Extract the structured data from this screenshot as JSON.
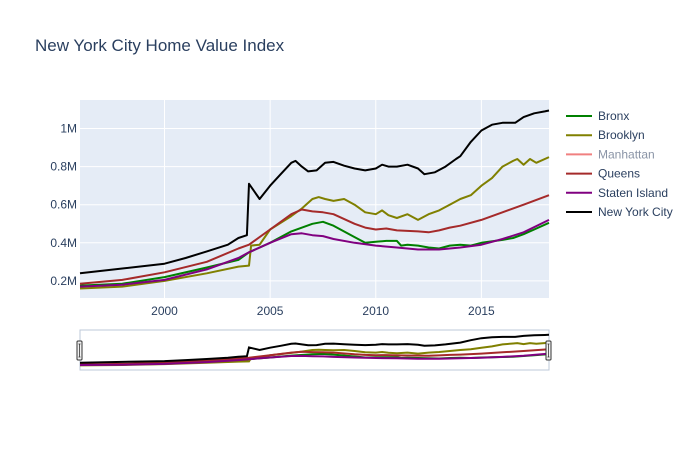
{
  "chart_data": {
    "type": "line",
    "title": "New York City Home Value Index",
    "xlabel": "",
    "ylabel": "",
    "xlim": [
      1996.0,
      2018.2
    ],
    "ylim": [
      0.11,
      1.15
    ],
    "y_unit": "millions",
    "x_ticks": [
      {
        "value": 2000,
        "label": "2000"
      },
      {
        "value": 2005,
        "label": "2005"
      },
      {
        "value": 2010,
        "label": "2010"
      },
      {
        "value": 2015,
        "label": "2015"
      }
    ],
    "y_ticks": [
      {
        "value": 0.2,
        "label": "0.2M"
      },
      {
        "value": 0.4,
        "label": "0.4M"
      },
      {
        "value": 0.6,
        "label": "0.6M"
      },
      {
        "value": 0.8,
        "label": "0.8M"
      },
      {
        "value": 1.0,
        "label": "1M"
      }
    ],
    "grid": true,
    "legend_position": "right",
    "range_slider": true,
    "series": [
      {
        "name": "Bronx",
        "color": "#008000",
        "muted": false,
        "x": [
          1996,
          1998,
          2000,
          2002,
          2003.5,
          2004,
          2005,
          2006,
          2007,
          2007.5,
          2008,
          2009,
          2009.5,
          2010,
          2010.5,
          2011,
          2011.2,
          2011.5,
          2012,
          2012.5,
          2013,
          2013.5,
          2014,
          2014.5,
          2015,
          2016,
          2016.5,
          2017,
          2017.5,
          2018.2
        ],
        "y": [
          0.175,
          0.185,
          0.22,
          0.27,
          0.31,
          0.35,
          0.4,
          0.46,
          0.5,
          0.51,
          0.49,
          0.43,
          0.4,
          0.405,
          0.41,
          0.41,
          0.385,
          0.39,
          0.385,
          0.375,
          0.37,
          0.385,
          0.39,
          0.385,
          0.4,
          0.415,
          0.425,
          0.445,
          0.47,
          0.505
        ]
      },
      {
        "name": "Brooklyn",
        "color": "#808000",
        "muted": false,
        "x": [
          1996,
          1998,
          2000,
          2002,
          2003.5,
          2004,
          2004.1,
          2004.5,
          2005,
          2006,
          2006.5,
          2007,
          2007.3,
          2007.6,
          2008,
          2008.5,
          2009,
          2009.5,
          2010,
          2010.3,
          2010.6,
          2011,
          2011.5,
          2012,
          2012.5,
          2013,
          2013.5,
          2014,
          2014.5,
          2015,
          2015.5,
          2016,
          2016.5,
          2016.7,
          2017,
          2017.3,
          2017.6,
          2018.2
        ],
        "y": [
          0.16,
          0.17,
          0.2,
          0.24,
          0.275,
          0.28,
          0.385,
          0.39,
          0.47,
          0.54,
          0.58,
          0.63,
          0.64,
          0.63,
          0.62,
          0.63,
          0.6,
          0.56,
          0.55,
          0.57,
          0.545,
          0.53,
          0.55,
          0.52,
          0.55,
          0.57,
          0.6,
          0.63,
          0.65,
          0.7,
          0.74,
          0.8,
          0.83,
          0.84,
          0.81,
          0.84,
          0.82,
          0.85
        ]
      },
      {
        "name": "Manhattan",
        "color": "#f08080",
        "muted": true,
        "x": [],
        "y": []
      },
      {
        "name": "Queens",
        "color": "#a52a2a",
        "muted": false,
        "x": [
          1996,
          1998,
          2000,
          2002,
          2003.5,
          2004,
          2005,
          2006,
          2006.5,
          2007,
          2007.5,
          2008,
          2009,
          2009.5,
          2010,
          2010.5,
          2011,
          2012,
          2012.5,
          2013,
          2013.5,
          2014,
          2015,
          2016,
          2017,
          2018.2
        ],
        "y": [
          0.185,
          0.205,
          0.245,
          0.3,
          0.37,
          0.39,
          0.47,
          0.55,
          0.575,
          0.565,
          0.56,
          0.55,
          0.5,
          0.48,
          0.47,
          0.475,
          0.465,
          0.46,
          0.455,
          0.465,
          0.48,
          0.49,
          0.52,
          0.56,
          0.6,
          0.65
        ]
      },
      {
        "name": "Staten Island",
        "color": "#800080",
        "muted": false,
        "x": [
          1996,
          1998,
          2000,
          2002,
          2003.5,
          2004,
          2005,
          2006,
          2006.5,
          2007,
          2007.5,
          2008,
          2009,
          2010,
          2011,
          2012,
          2013,
          2014,
          2015,
          2016,
          2017,
          2018.2
        ],
        "y": [
          0.17,
          0.18,
          0.205,
          0.26,
          0.32,
          0.35,
          0.4,
          0.445,
          0.45,
          0.44,
          0.435,
          0.42,
          0.4,
          0.385,
          0.375,
          0.365,
          0.365,
          0.375,
          0.39,
          0.42,
          0.455,
          0.52
        ]
      },
      {
        "name": "New York City",
        "color": "#000000",
        "muted": false,
        "x": [
          1996,
          1998,
          2000,
          2001,
          2002,
          2003,
          2003.5,
          2003.9,
          2004,
          2004.5,
          2005,
          2005.5,
          2006,
          2006.2,
          2006.5,
          2006.8,
          2007.2,
          2007.6,
          2008,
          2008.5,
          2009,
          2009.5,
          2010,
          2010.3,
          2010.6,
          2011,
          2011.5,
          2012,
          2012.3,
          2012.8,
          2013.3,
          2013.8,
          2014,
          2014.5,
          2015,
          2015.5,
          2016,
          2016.3,
          2016.6,
          2017,
          2017.5,
          2018,
          2018.2
        ],
        "y": [
          0.24,
          0.265,
          0.29,
          0.32,
          0.355,
          0.39,
          0.425,
          0.44,
          0.71,
          0.63,
          0.7,
          0.76,
          0.82,
          0.83,
          0.8,
          0.775,
          0.78,
          0.82,
          0.825,
          0.805,
          0.79,
          0.78,
          0.79,
          0.81,
          0.8,
          0.8,
          0.81,
          0.79,
          0.76,
          0.77,
          0.8,
          0.84,
          0.855,
          0.93,
          0.99,
          1.02,
          1.03,
          1.03,
          1.03,
          1.06,
          1.08,
          1.09,
          1.095
        ]
      }
    ]
  }
}
